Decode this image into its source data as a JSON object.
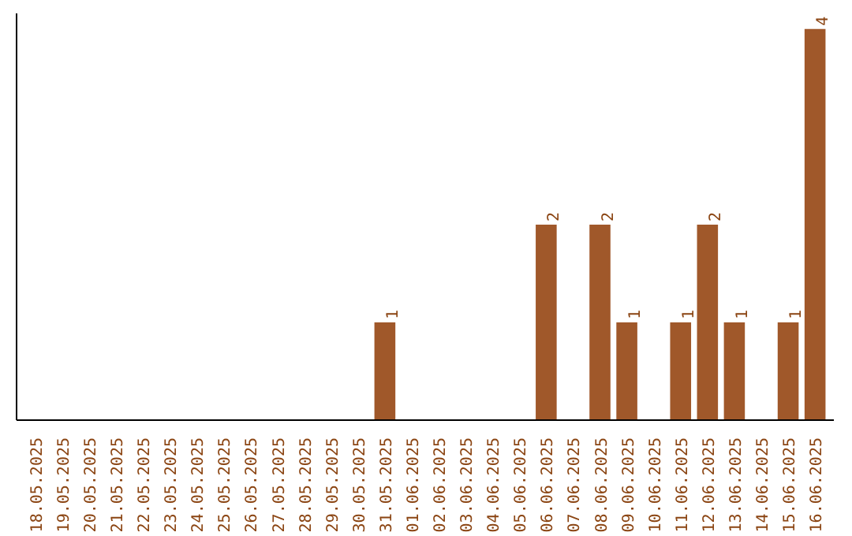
{
  "chart_data": {
    "type": "bar",
    "categories": [
      "18.05.2025",
      "19.05.2025",
      "20.05.2025",
      "21.05.2025",
      "22.05.2025",
      "23.05.2025",
      "24.05.2025",
      "25.05.2025",
      "26.05.2025",
      "27.05.2025",
      "28.05.2025",
      "29.05.2025",
      "30.05.2025",
      "31.05.2025",
      "01.06.2025",
      "02.06.2025",
      "03.06.2025",
      "04.06.2025",
      "05.06.2025",
      "06.06.2025",
      "07.06.2025",
      "08.06.2025",
      "09.06.2025",
      "10.06.2025",
      "11.06.2025",
      "12.06.2025",
      "13.06.2025",
      "14.06.2025",
      "15.06.2025",
      "16.06.2025"
    ],
    "values": [
      null,
      null,
      null,
      null,
      null,
      null,
      null,
      null,
      null,
      null,
      null,
      null,
      null,
      1,
      null,
      null,
      null,
      null,
      null,
      2,
      null,
      2,
      1,
      null,
      1,
      2,
      1,
      null,
      1,
      4
    ],
    "value_labels": [
      null,
      null,
      null,
      null,
      null,
      null,
      null,
      null,
      null,
      null,
      null,
      null,
      null,
      "1",
      null,
      null,
      null,
      null,
      null,
      "2",
      null,
      "2",
      "1",
      null,
      "1",
      "2",
      "1",
      null,
      "1",
      "4"
    ],
    "color": "#a0582a",
    "grid": false,
    "tick_labels": "x"
  }
}
